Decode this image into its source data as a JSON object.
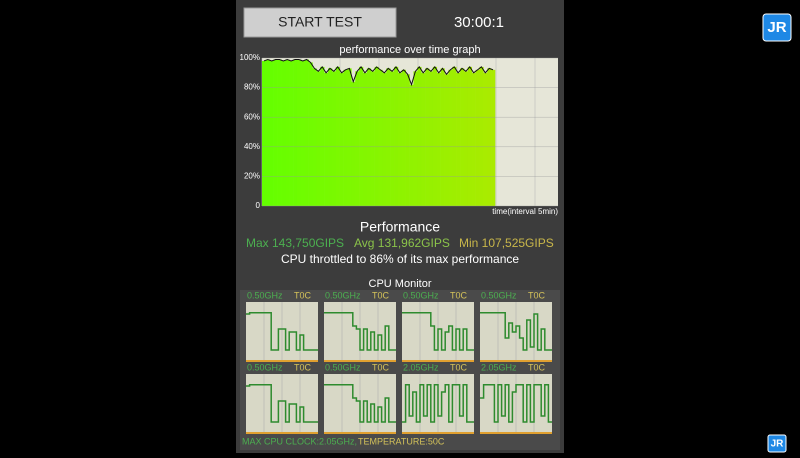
{
  "app": {
    "button": "START TEST",
    "timer": "30:00:1",
    "graph": {
      "title": "performance over time graph",
      "x_label": "time(interval 5min)",
      "ylim": [
        0,
        100
      ],
      "yticks": [
        {
          "value": 0,
          "label": "0"
        },
        {
          "value": 20,
          "label": "20%"
        },
        {
          "value": 40,
          "label": "40%"
        },
        {
          "value": 60,
          "label": "60%"
        },
        {
          "value": 80,
          "label": "80%"
        },
        {
          "value": 100,
          "label": "100%"
        }
      ],
      "values": [
        98,
        99,
        98,
        99,
        99,
        98,
        99,
        98,
        99,
        99,
        98,
        99,
        97,
        93,
        91,
        94,
        90,
        93,
        91,
        94,
        90,
        92,
        93,
        84,
        91,
        94,
        90,
        93,
        91,
        94,
        92,
        90,
        93,
        91,
        94,
        90,
        92,
        89,
        82,
        91,
        94,
        90,
        93,
        91,
        94,
        90,
        93,
        89,
        92,
        94,
        90,
        93,
        91,
        94,
        90,
        92,
        94,
        90,
        93,
        92
      ]
    },
    "performance_title": "Performance",
    "max": "Max 143,750GIPS",
    "avg": "Avg 131,962GIPS",
    "min": "Min 107,525GIPS",
    "throttle": "CPU throttled to 86% of its max performance",
    "monitor_title": "CPU Monitor",
    "cores": [
      {
        "freq": "0.50GHz",
        "temp": "T0C",
        "values": [
          80,
          82,
          82,
          82,
          82,
          82,
          82,
          20,
          20,
          55,
          55,
          20,
          50,
          50,
          20,
          45,
          20,
          20,
          20,
          20
        ]
      },
      {
        "freq": "0.50GHz",
        "temp": "T0C",
        "values": [
          82,
          82,
          82,
          82,
          82,
          82,
          82,
          82,
          60,
          55,
          20,
          55,
          20,
          50,
          20,
          45,
          20,
          60,
          20,
          20
        ]
      },
      {
        "freq": "0.50GHz",
        "temp": "T0C",
        "values": [
          82,
          82,
          82,
          82,
          82,
          82,
          82,
          82,
          60,
          20,
          55,
          20,
          50,
          60,
          20,
          55,
          20,
          55,
          20,
          20
        ]
      },
      {
        "freq": "0.50GHz",
        "temp": "T0C",
        "values": [
          82,
          82,
          82,
          82,
          82,
          82,
          82,
          40,
          65,
          50,
          60,
          40,
          20,
          70,
          25,
          80,
          20,
          55,
          20,
          20
        ]
      },
      {
        "freq": "0.50GHz",
        "temp": "T0C",
        "values": [
          80,
          82,
          82,
          82,
          82,
          82,
          82,
          20,
          20,
          55,
          55,
          20,
          50,
          50,
          20,
          45,
          20,
          20,
          20,
          20
        ]
      },
      {
        "freq": "0.50GHz",
        "temp": "T0C",
        "values": [
          82,
          82,
          82,
          82,
          82,
          82,
          82,
          82,
          60,
          55,
          20,
          55,
          20,
          50,
          20,
          45,
          20,
          60,
          20,
          20
        ]
      },
      {
        "freq": "2.05GHz",
        "temp": "T0C",
        "values": [
          20,
          82,
          30,
          70,
          20,
          82,
          30,
          82,
          20,
          82,
          30,
          70,
          82,
          20,
          82,
          82,
          30,
          82,
          20,
          20
        ]
      },
      {
        "freq": "2.05GHz",
        "temp": "T0C",
        "values": [
          60,
          82,
          82,
          82,
          20,
          82,
          30,
          82,
          20,
          70,
          82,
          82,
          20,
          82,
          20,
          82,
          82,
          30,
          82,
          20
        ]
      }
    ],
    "footer_clock": "MAX CPU CLOCK:2.05GHz,",
    "footer_temp": "TEMPERATURE:50C",
    "logo": "JR"
  }
}
